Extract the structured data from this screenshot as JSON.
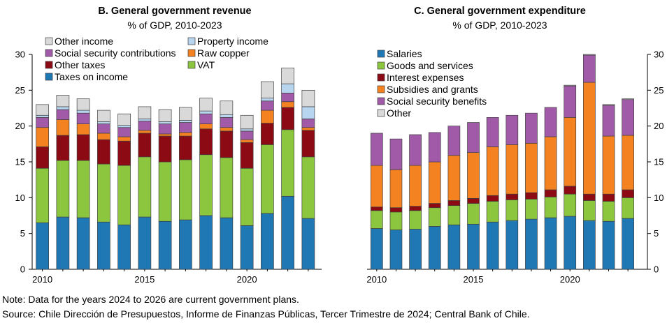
{
  "notes": {
    "note": "Note: Data for the years 2024 to 2026 are current government plans.",
    "source": "Source: Chile Dirección de Presupuestos, Informe de Finanzas Públicas, Tercer Trimestre de 2024; Central Bank of Chile."
  },
  "chart_data": [
    {
      "type": "bar",
      "stacked": true,
      "title": "B. General government revenue",
      "subtitle": "% of GDP, 2010-2023",
      "xlabel": "",
      "ylabel": "",
      "categories": [
        2010,
        2011,
        2012,
        2013,
        2014,
        2015,
        2016,
        2017,
        2018,
        2019,
        2020,
        2021,
        2022,
        2023
      ],
      "x_tick_labels": [
        "2010",
        "2015",
        "2020"
      ],
      "ylim": [
        0,
        30
      ],
      "yticks": [
        0,
        5,
        10,
        15,
        20,
        25,
        30
      ],
      "y_axis_side": "left",
      "grid": false,
      "legend_placement": "top-left",
      "series": [
        {
          "name": "Taxes on income",
          "color": "#1f77b4",
          "values": [
            6.5,
            7.3,
            7.2,
            6.6,
            6.2,
            7.3,
            6.7,
            6.9,
            7.5,
            7.2,
            6.1,
            7.8,
            10.2,
            7.1
          ]
        },
        {
          "name": "VAT",
          "color": "#8cc63f",
          "values": [
            7.6,
            7.9,
            8.0,
            8.1,
            8.3,
            8.4,
            8.3,
            8.4,
            8.5,
            8.4,
            8.0,
            9.6,
            9.3,
            8.6
          ]
        },
        {
          "name": "Other taxes",
          "color": "#8b0a14",
          "values": [
            3.0,
            3.5,
            3.6,
            3.4,
            3.4,
            3.3,
            3.6,
            3.3,
            3.6,
            3.7,
            3.6,
            3.0,
            3.1,
            3.7
          ]
        },
        {
          "name": "Raw copper",
          "color": "#f58220",
          "values": [
            2.7,
            2.2,
            1.5,
            0.9,
            0.6,
            0.4,
            0.3,
            0.5,
            0.7,
            0.5,
            0.4,
            1.8,
            0.8,
            0.4
          ]
        },
        {
          "name": "Social security contributions",
          "color": "#a05aa8",
          "values": [
            1.4,
            1.4,
            1.5,
            1.3,
            1.3,
            1.3,
            1.4,
            1.4,
            1.4,
            1.4,
            1.2,
            1.3,
            1.2,
            1.2
          ]
        },
        {
          "name": "Property income",
          "color": "#b8d5f0",
          "values": [
            0.3,
            0.4,
            0.4,
            0.3,
            0.3,
            0.3,
            0.3,
            0.3,
            0.4,
            0.4,
            0.3,
            0.4,
            1.3,
            1.7
          ]
        },
        {
          "name": "Other income",
          "color": "#d9d9d9",
          "values": [
            1.5,
            1.6,
            1.6,
            1.6,
            1.6,
            1.7,
            1.7,
            1.8,
            1.8,
            1.9,
            1.9,
            2.3,
            2.2,
            2.3
          ]
        }
      ]
    },
    {
      "type": "bar",
      "stacked": true,
      "title": "C. General government expenditure",
      "subtitle": "% of GDP, 2010-2023",
      "xlabel": "",
      "ylabel": "",
      "categories": [
        2010,
        2011,
        2012,
        2013,
        2014,
        2015,
        2016,
        2017,
        2018,
        2019,
        2020,
        2021,
        2022,
        2023
      ],
      "x_tick_labels": [
        "2010",
        "2015",
        "2020"
      ],
      "ylim": [
        0,
        30
      ],
      "yticks": [
        0,
        5,
        10,
        15,
        20,
        25,
        30
      ],
      "y_axis_side": "right",
      "grid": false,
      "legend_placement": "top-left",
      "series": [
        {
          "name": "Salaries",
          "color": "#1f77b4",
          "values": [
            5.7,
            5.5,
            5.6,
            6.0,
            6.2,
            6.3,
            6.6,
            6.8,
            7.0,
            7.2,
            7.4,
            6.8,
            6.7,
            7.1
          ]
        },
        {
          "name": "Goods and services",
          "color": "#8cc63f",
          "values": [
            2.5,
            2.5,
            2.6,
            2.6,
            2.7,
            2.9,
            2.9,
            2.9,
            2.8,
            2.9,
            3.1,
            2.8,
            2.8,
            2.9
          ]
        },
        {
          "name": "Interest expenses",
          "color": "#8b0a14",
          "values": [
            0.5,
            0.6,
            0.6,
            0.6,
            0.7,
            0.7,
            0.8,
            0.8,
            0.9,
            1.0,
            1.1,
            0.9,
            1.0,
            1.1
          ]
        },
        {
          "name": "Subsidies and grants",
          "color": "#f58220",
          "values": [
            5.8,
            5.3,
            5.7,
            5.8,
            6.3,
            6.4,
            6.8,
            6.9,
            6.9,
            7.4,
            9.6,
            15.6,
            8.1,
            7.6
          ]
        },
        {
          "name": "Social security benefits",
          "color": "#a05aa8",
          "values": [
            4.5,
            4.3,
            4.3,
            4.1,
            4.1,
            4.2,
            4.1,
            4.1,
            4.2,
            4.1,
            4.4,
            3.8,
            4.3,
            5.0
          ]
        },
        {
          "name": "Other",
          "color": "#d9d9d9",
          "values": [
            0,
            0,
            0,
            0,
            0,
            0,
            0,
            0,
            0,
            0,
            0.1,
            0.1,
            0.1,
            0.1
          ]
        }
      ]
    }
  ]
}
